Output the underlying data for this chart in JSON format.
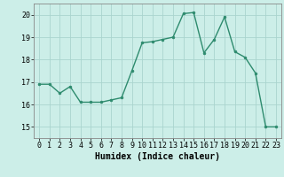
{
  "x": [
    0,
    1,
    2,
    3,
    4,
    5,
    6,
    7,
    8,
    9,
    10,
    11,
    12,
    13,
    14,
    15,
    16,
    17,
    18,
    19,
    20,
    21,
    22,
    23
  ],
  "y": [
    16.9,
    16.9,
    16.5,
    16.8,
    16.1,
    16.1,
    16.1,
    16.2,
    16.3,
    17.5,
    18.75,
    18.8,
    18.9,
    19.0,
    20.05,
    20.1,
    18.3,
    18.9,
    19.9,
    18.35,
    18.1,
    17.4,
    15.0,
    15.0
  ],
  "line_color": "#2e8b6e",
  "marker": "o",
  "marker_size": 2.0,
  "line_width": 1.0,
  "xlabel": "Humidex (Indice chaleur)",
  "xlabel_fontsize": 7,
  "xlabel_fontweight": "bold",
  "background_color": "#cceee8",
  "grid_color": "#aad4ce",
  "ylim": [
    14.5,
    20.5
  ],
  "xlim": [
    -0.5,
    23.5
  ],
  "yticks": [
    15,
    16,
    17,
    18,
    19,
    20
  ],
  "xticks": [
    0,
    1,
    2,
    3,
    4,
    5,
    6,
    7,
    8,
    9,
    10,
    11,
    12,
    13,
    14,
    15,
    16,
    17,
    18,
    19,
    20,
    21,
    22,
    23
  ],
  "tick_fontsize": 6,
  "spine_color": "#888888"
}
